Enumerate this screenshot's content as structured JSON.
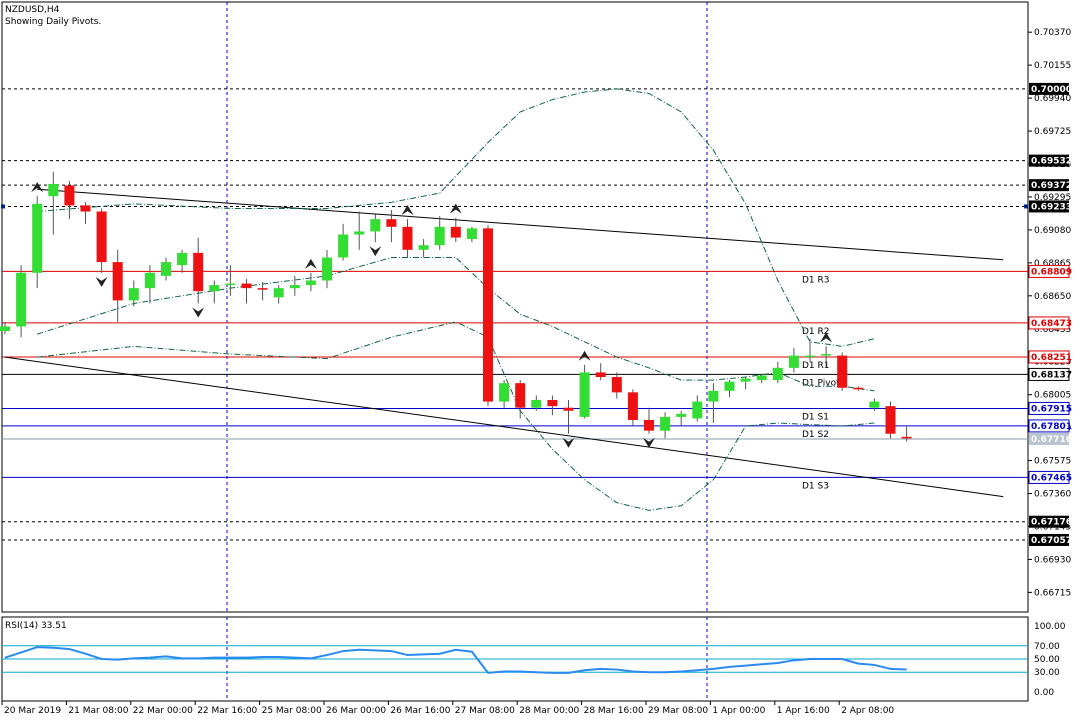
{
  "header": {
    "symbol": "NZDUSD,H4",
    "subtitle": "Showing Daily Pivots."
  },
  "colors": {
    "bull": "#33dd33",
    "bear": "#ee1111",
    "wick": "#555555",
    "grid": "#0000cc",
    "pivot_res": "#dd0000",
    "pivot_sup": "#0000cc",
    "pivot_mid": "#000000",
    "rsi_line": "#2a8af0",
    "rsi_level": "#00aacc",
    "trend": "#000000",
    "bollinger": "#116644"
  },
  "chart_data": {
    "type": "candlestick",
    "title": "NZDUSD,H4",
    "subtitle": "Showing Daily Pivots.",
    "ylim": [
      0.666,
      0.7058
    ],
    "y_ticks": [
      "0.70370",
      "0.70155",
      "0.69940",
      "0.69725",
      "0.69510",
      "0.69295",
      "0.69080",
      "0.68865",
      "0.68650",
      "0.68435",
      "0.68220",
      "0.68005",
      "0.67790",
      "0.67575",
      "0.67360",
      "0.67145",
      "0.66930",
      "0.66715"
    ],
    "x_labels": [
      "20 Mar 2019",
      "21 Mar 08:00",
      "22 Mar 00:00",
      "22 Mar 16:00",
      "25 Mar 08:00",
      "26 Mar 00:00",
      "26 Mar 16:00",
      "27 Mar 08:00",
      "28 Mar 00:00",
      "28 Mar 16:00",
      "29 Mar 08:00",
      "1 Apr 00:00",
      "1 Apr 16:00",
      "2 Apr 08:00"
    ],
    "candles": [
      [
        0.6842,
        0.6848,
        0.684,
        0.6845
      ],
      [
        0.6845,
        0.6885,
        0.6838,
        0.688
      ],
      [
        0.688,
        0.693,
        0.687,
        0.6925
      ],
      [
        0.693,
        0.6946,
        0.6905,
        0.6938
      ],
      [
        0.6937,
        0.694,
        0.6915,
        0.6924
      ],
      [
        0.6924,
        0.6926,
        0.6912,
        0.692
      ],
      [
        0.692,
        0.6922,
        0.688,
        0.6887
      ],
      [
        0.6887,
        0.6895,
        0.6848,
        0.6862
      ],
      [
        0.6862,
        0.6875,
        0.6858,
        0.687
      ],
      [
        0.687,
        0.6885,
        0.686,
        0.688
      ],
      [
        0.6878,
        0.689,
        0.6875,
        0.6887
      ],
      [
        0.6885,
        0.6895,
        0.688,
        0.6893
      ],
      [
        0.6893,
        0.6903,
        0.686,
        0.6868
      ],
      [
        0.6868,
        0.6875,
        0.686,
        0.6872
      ],
      [
        0.6872,
        0.6885,
        0.6865,
        0.6873
      ],
      [
        0.6873,
        0.6876,
        0.686,
        0.687
      ],
      [
        0.687,
        0.6874,
        0.6862,
        0.6869
      ],
      [
        0.6864,
        0.6872,
        0.686,
        0.687
      ],
      [
        0.687,
        0.6878,
        0.6865,
        0.6872
      ],
      [
        0.6872,
        0.688,
        0.6868,
        0.6875
      ],
      [
        0.6875,
        0.6895,
        0.687,
        0.689
      ],
      [
        0.689,
        0.6912,
        0.6888,
        0.6905
      ],
      [
        0.6905,
        0.692,
        0.6895,
        0.6907
      ],
      [
        0.6907,
        0.6918,
        0.69,
        0.6915
      ],
      [
        0.6915,
        0.6921,
        0.69,
        0.691
      ],
      [
        0.691,
        0.6915,
        0.689,
        0.6895
      ],
      [
        0.6895,
        0.6902,
        0.689,
        0.6898
      ],
      [
        0.6898,
        0.6917,
        0.6895,
        0.691
      ],
      [
        0.691,
        0.6916,
        0.69,
        0.6903
      ],
      [
        0.6902,
        0.691,
        0.69,
        0.6909
      ],
      [
        0.6909,
        0.6911,
        0.6793,
        0.6796
      ],
      [
        0.6796,
        0.681,
        0.6792,
        0.6808
      ],
      [
        0.6808,
        0.681,
        0.6785,
        0.6792
      ],
      [
        0.6792,
        0.68,
        0.679,
        0.6797
      ],
      [
        0.6797,
        0.68,
        0.6787,
        0.6793
      ],
      [
        0.6792,
        0.6797,
        0.6775,
        0.679
      ],
      [
        0.6786,
        0.682,
        0.6785,
        0.6815
      ],
      [
        0.6815,
        0.6821,
        0.681,
        0.6812
      ],
      [
        0.6812,
        0.6815,
        0.6798,
        0.6802
      ],
      [
        0.6802,
        0.6804,
        0.678,
        0.6784
      ],
      [
        0.6784,
        0.6792,
        0.6775,
        0.6777
      ],
      [
        0.6777,
        0.6789,
        0.6772,
        0.6786
      ],
      [
        0.6786,
        0.679,
        0.678,
        0.6788
      ],
      [
        0.6785,
        0.68,
        0.6783,
        0.6796
      ],
      [
        0.6796,
        0.6808,
        0.6782,
        0.6803
      ],
      [
        0.6803,
        0.681,
        0.6799,
        0.6809
      ],
      [
        0.6809,
        0.6812,
        0.6804,
        0.6811
      ],
      [
        0.681,
        0.6814,
        0.6808,
        0.6813
      ],
      [
        0.681,
        0.6822,
        0.6808,
        0.6818
      ],
      [
        0.6818,
        0.6831,
        0.6815,
        0.6826
      ],
      [
        0.6826,
        0.6837,
        0.6822,
        0.6826
      ],
      [
        0.6826,
        0.6832,
        0.6818,
        0.6827
      ],
      [
        0.6826,
        0.6828,
        0.6803,
        0.6805
      ],
      [
        0.6805,
        0.6806,
        0.6803,
        0.6804
      ],
      [
        0.6792,
        0.6798,
        0.679,
        0.6796
      ],
      [
        0.6793,
        0.6796,
        0.6772,
        0.6775
      ],
      [
        0.6773,
        0.678,
        0.677,
        0.6772
      ]
    ],
    "fractals_up": [
      2,
      19,
      25,
      28,
      36,
      51
    ],
    "fractals_down": [
      6,
      12,
      23,
      35,
      40
    ],
    "pivots": [
      {
        "label": "D1 R3",
        "value": 0.68809,
        "box": "0.68809",
        "kind": "res"
      },
      {
        "label": "D1 R2",
        "value": 0.68473,
        "box": "0.68473",
        "kind": "res"
      },
      {
        "label": "D1 R1",
        "value": 0.68251,
        "box": "0.68251",
        "kind": "res"
      },
      {
        "label": "D1 Pivot",
        "value": 0.68137,
        "box": "0.68137",
        "kind": "mid"
      },
      {
        "label": "D1 S1",
        "value": 0.67915,
        "box": "0.67915",
        "kind": "sup"
      },
      {
        "label": "D1 S2",
        "value": 0.67801,
        "box": "0.67801",
        "kind": "sup"
      },
      {
        "label": "D1 S3",
        "value": 0.67465,
        "box": "0.67465",
        "kind": "sup"
      }
    ],
    "levels": [
      {
        "value": 0.7,
        "box": "0.70000"
      },
      {
        "value": 0.69532,
        "box": "0.69532"
      },
      {
        "value": 0.69372,
        "box": "0.69372"
      },
      {
        "value": 0.69233,
        "box": "0.69233"
      },
      {
        "value": 0.67176,
        "box": "0.67176"
      },
      {
        "value": 0.67057,
        "box": "0.67057"
      }
    ],
    "current": {
      "value": 0.67716,
      "box": "0.67716"
    },
    "trendlines": [
      {
        "x1": 2,
        "y1": 0.69345,
        "x2": 62,
        "y2": 0.68885
      },
      {
        "x1": 0,
        "y1": 0.6825,
        "x2": 62,
        "y2": 0.6734
      }
    ],
    "bollinger": {
      "upper": [
        [
          2,
          0.692
        ],
        [
          8,
          0.6925
        ],
        [
          14,
          0.6922
        ],
        [
          20,
          0.6922
        ],
        [
          24,
          0.6926
        ],
        [
          27,
          0.6932
        ],
        [
          30,
          0.6965
        ],
        [
          32,
          0.6985
        ],
        [
          34,
          0.6993
        ],
        [
          36,
          0.6998
        ],
        [
          38,
          0.7
        ],
        [
          40,
          0.6997
        ],
        [
          42,
          0.6985
        ],
        [
          44,
          0.696
        ],
        [
          46,
          0.6925
        ],
        [
          48,
          0.6875
        ],
        [
          50,
          0.6835
        ],
        [
          52,
          0.6832
        ],
        [
          54,
          0.6837
        ]
      ],
      "middle": [
        [
          2,
          0.684
        ],
        [
          8,
          0.686
        ],
        [
          14,
          0.687
        ],
        [
          20,
          0.6878
        ],
        [
          24,
          0.689
        ],
        [
          28,
          0.689
        ],
        [
          30,
          0.687
        ],
        [
          32,
          0.6853
        ],
        [
          34,
          0.6845
        ],
        [
          36,
          0.6835
        ],
        [
          38,
          0.6825
        ],
        [
          40,
          0.6818
        ],
        [
          42,
          0.681
        ],
        [
          44,
          0.681
        ],
        [
          46,
          0.6812
        ],
        [
          48,
          0.6815
        ],
        [
          50,
          0.6806
        ],
        [
          52,
          0.6806
        ],
        [
          54,
          0.6803
        ]
      ],
      "lower": [
        [
          2,
          0.6825
        ],
        [
          8,
          0.6832
        ],
        [
          14,
          0.6827
        ],
        [
          20,
          0.6824
        ],
        [
          24,
          0.6838
        ],
        [
          28,
          0.6848
        ],
        [
          30,
          0.6838
        ],
        [
          32,
          0.679
        ],
        [
          34,
          0.6765
        ],
        [
          36,
          0.6745
        ],
        [
          38,
          0.673
        ],
        [
          40,
          0.6725
        ],
        [
          42,
          0.6728
        ],
        [
          44,
          0.6745
        ],
        [
          46,
          0.678
        ],
        [
          48,
          0.6782
        ],
        [
          50,
          0.6781
        ],
        [
          52,
          0.678
        ],
        [
          54,
          0.6782
        ]
      ]
    },
    "rsi": {
      "label": "RSI(14) 33.51",
      "levels": [
        70,
        50,
        30
      ],
      "ticks": [
        "100.00",
        "70.00",
        "50.00",
        "30.00",
        "0.00"
      ],
      "values": [
        52,
        60,
        68,
        67,
        65,
        58,
        50,
        49,
        51,
        52,
        54,
        51,
        51,
        52,
        52,
        52,
        53,
        53,
        52,
        51,
        56,
        62,
        64,
        63,
        62,
        56,
        57,
        58,
        64,
        61,
        29,
        31,
        31,
        30,
        29,
        29,
        33,
        35,
        34,
        31,
        30,
        30,
        31,
        33,
        35,
        38,
        40,
        42,
        44,
        48,
        50,
        50,
        50,
        43,
        41,
        35,
        34
      ]
    }
  }
}
